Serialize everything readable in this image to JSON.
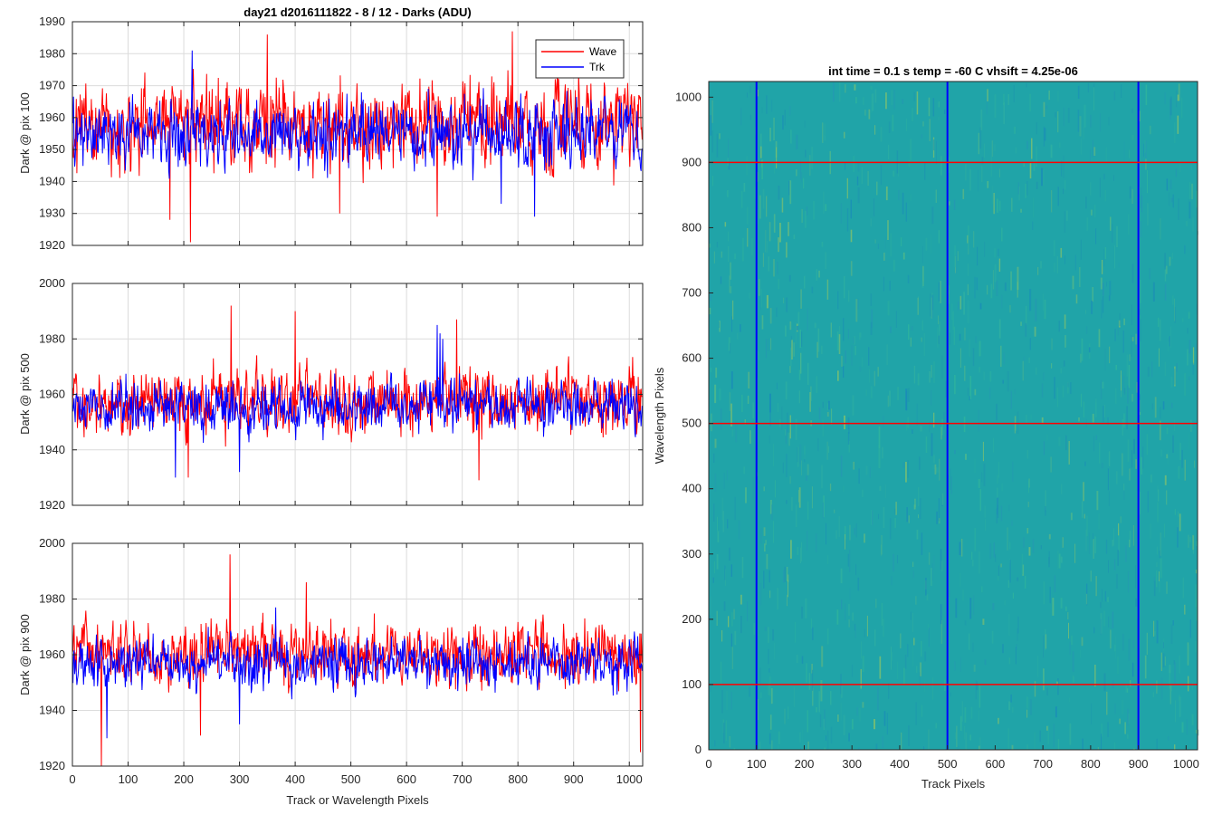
{
  "colors": {
    "wave": "#ff0000",
    "trk": "#0000ff",
    "grid": "#dcdcdc",
    "axis": "#262626"
  },
  "chart_data": [
    {
      "type": "line",
      "title": "day21 d2016111822 - 8 / 12 - Darks (ADU)",
      "xlabel": "",
      "ylabel": "Dark @ pix 100",
      "xlim": [
        0,
        1024
      ],
      "ylim": [
        1920,
        1990
      ],
      "x_ticks": [
        "0",
        "100",
        "200",
        "300",
        "400",
        "500",
        "600",
        "700",
        "800",
        "900",
        "1000"
      ],
      "y_ticks": [
        "1920",
        "1930",
        "1940",
        "1950",
        "1960",
        "1970",
        "1980",
        "1990"
      ],
      "grid": true,
      "legend": [
        "Wave",
        "Trk"
      ],
      "legend_position": "top-right",
      "series": [
        {
          "name": "Wave",
          "color": "#ff0000",
          "mean": 1958,
          "noise": 12,
          "peak_max": 1987,
          "peak_min": 1921,
          "features": [
            [
              350,
              1986
            ],
            [
              790,
              1987
            ],
            [
              212,
              1921
            ],
            [
              175,
              1928
            ],
            [
              480,
              1930
            ],
            [
              655,
              1929
            ]
          ]
        },
        {
          "name": "Trk",
          "color": "#0000ff",
          "mean": 1955,
          "noise": 9,
          "peak_max": 1981,
          "peak_min": 1929,
          "features": [
            [
              215,
              1981
            ],
            [
              830,
              1929
            ],
            [
              770,
              1933
            ]
          ]
        }
      ]
    },
    {
      "type": "line",
      "title": "",
      "xlabel": "",
      "ylabel": "Dark @ pix 500",
      "xlim": [
        0,
        1024
      ],
      "ylim": [
        1920,
        2000
      ],
      "x_ticks": [
        "0",
        "100",
        "200",
        "300",
        "400",
        "500",
        "600",
        "700",
        "800",
        "900",
        "1000"
      ],
      "y_ticks": [
        "1920",
        "1940",
        "1960",
        "1980",
        "2000"
      ],
      "grid": true,
      "series": [
        {
          "name": "Wave",
          "color": "#ff0000",
          "mean": 1958,
          "noise": 10,
          "peak_max": 1992,
          "peak_min": 1929,
          "features": [
            [
              285,
              1992
            ],
            [
              400,
              1990
            ],
            [
              690,
              1987
            ],
            [
              730,
              1929
            ],
            [
              208,
              1930
            ]
          ]
        },
        {
          "name": "Trk",
          "color": "#0000ff",
          "mean": 1956,
          "noise": 8,
          "peak_max": 1985,
          "peak_min": 1930,
          "features": [
            [
              655,
              1985
            ],
            [
              660,
              1982
            ],
            [
              665,
              1980
            ],
            [
              185,
              1930
            ],
            [
              300,
              1932
            ]
          ]
        }
      ]
    },
    {
      "type": "line",
      "title": "",
      "xlabel": "Track or Wavelength Pixels",
      "ylabel": "Dark @ pix 900",
      "xlim": [
        0,
        1024
      ],
      "ylim": [
        1920,
        2000
      ],
      "x_ticks": [
        "0",
        "100",
        "200",
        "300",
        "400",
        "500",
        "600",
        "700",
        "800",
        "900",
        "1000"
      ],
      "y_ticks": [
        "1920",
        "1940",
        "1960",
        "1980",
        "2000"
      ],
      "grid": true,
      "series": [
        {
          "name": "Wave",
          "color": "#ff0000",
          "mean": 1960,
          "noise": 10,
          "peak_max": 1996,
          "peak_min": 1920,
          "features": [
            [
              283,
              1996
            ],
            [
              420,
              1986
            ],
            [
              52,
              1920
            ],
            [
              1020,
              1925
            ],
            [
              230,
              1931
            ]
          ]
        },
        {
          "name": "Trk",
          "color": "#0000ff",
          "mean": 1957,
          "noise": 8,
          "peak_max": 1977,
          "peak_min": 1930,
          "features": [
            [
              365,
              1977
            ],
            [
              62,
              1930
            ],
            [
              300,
              1935
            ]
          ]
        }
      ]
    },
    {
      "type": "heatmap",
      "title": "int time = 0.1 s   temp = -60 C   vhsift = 4.25e-06",
      "xlabel": "Track Pixels",
      "ylabel": "Wavelength Pixels",
      "xlim": [
        0,
        1024
      ],
      "ylim": [
        0,
        1024
      ],
      "x_ticks": [
        "0",
        "100",
        "200",
        "300",
        "400",
        "500",
        "600",
        "700",
        "800",
        "900",
        "1000"
      ],
      "y_ticks": [
        "0",
        "100",
        "200",
        "300",
        "400",
        "500",
        "600",
        "700",
        "800",
        "900",
        "1000"
      ],
      "base_color": "#20a4a8",
      "markers": {
        "vertical_lines": {
          "x": [
            100,
            500,
            900
          ],
          "color": "#0000ff"
        },
        "horizontal_lines": {
          "y": [
            100,
            500,
            900
          ],
          "color": "#ff0000"
        }
      }
    }
  ]
}
